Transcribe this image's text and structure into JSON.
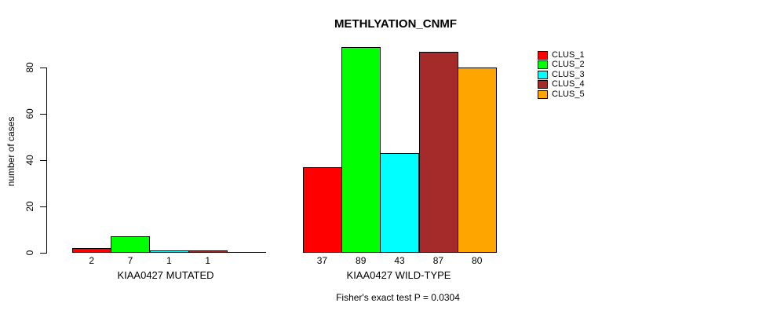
{
  "chart_data": {
    "type": "bar",
    "title": "METHLYATION_CNMF",
    "ylabel": "number of cases",
    "footnote": "Fisher's exact test P = 0.0304",
    "yticks": [
      0,
      20,
      40,
      60,
      80
    ],
    "ylim": [
      0,
      89
    ],
    "grid": false,
    "legend_position": "right",
    "clusters": [
      {
        "name": "CLUS_1",
        "color": "#ff0000"
      },
      {
        "name": "CLUS_2",
        "color": "#00ff00"
      },
      {
        "name": "CLUS_3",
        "color": "#00ffff"
      },
      {
        "name": "CLUS_4",
        "color": "#a52a2a"
      },
      {
        "name": "CLUS_5",
        "color": "#ffa500"
      }
    ],
    "groups": [
      {
        "label": "KIAA0427 MUTATED",
        "values": [
          2,
          7,
          1,
          1,
          0
        ]
      },
      {
        "label": "KIAA0427 WILD-TYPE",
        "values": [
          37,
          89,
          43,
          87,
          80
        ]
      }
    ]
  }
}
